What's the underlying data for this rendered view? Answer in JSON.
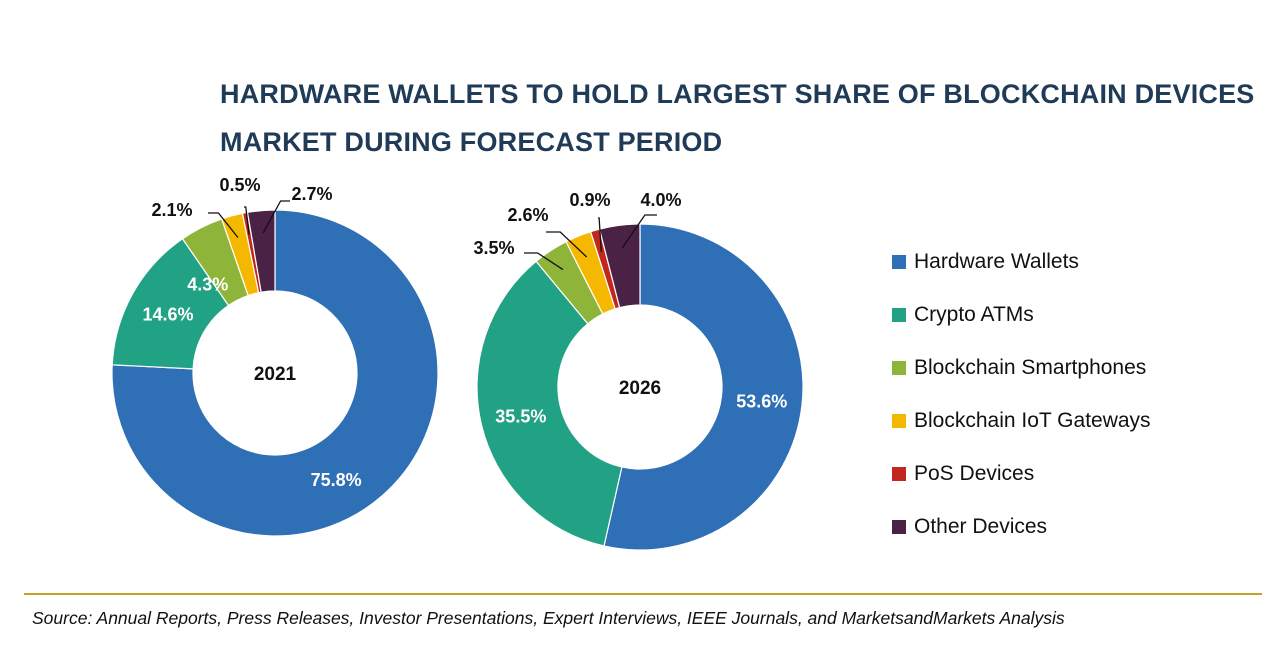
{
  "title_lines": [
    "HARDWARE WALLETS TO HOLD LARGEST SHARE OF BLOCKCHAIN DEVICES",
    "MARKET DURING FORECAST PERIOD"
  ],
  "source": "Source: Annual Reports, Press Releases, Investor Presentations, Expert Interviews, IEEE Journals, and MarketsandMarkets Analysis",
  "colors": {
    "Hardware Wallets": "#2e6fb5",
    "Crypto ATMs": "#22a284",
    "Blockchain Smartphones": "#8fb43a",
    "Blockchain IoT Gateways": "#f5b800",
    "PoS Devices": "#c2271e",
    "Other Devices": "#4a2245",
    "title": "#1f3b57",
    "rule": "#c8a12a"
  },
  "chart_data": [
    {
      "type": "pie",
      "style": "donut",
      "center_label": "2021",
      "categories": [
        "Hardware Wallets",
        "Crypto ATMs",
        "Blockchain Smartphones",
        "Blockchain IoT Gateways",
        "PoS Devices",
        "Other Devices"
      ],
      "values": [
        75.8,
        14.6,
        4.3,
        2.1,
        0.5,
        2.7
      ],
      "labels": [
        "75.8%",
        "14.6%",
        "4.3%",
        "2.1%",
        "0.5%",
        "2.7%"
      ]
    },
    {
      "type": "pie",
      "style": "donut",
      "center_label": "2026",
      "categories": [
        "Hardware Wallets",
        "Crypto ATMs",
        "Blockchain Smartphones",
        "Blockchain IoT Gateways",
        "PoS Devices",
        "Other Devices"
      ],
      "values": [
        53.6,
        35.5,
        3.5,
        2.6,
        0.9,
        4.0
      ],
      "labels": [
        "53.6%",
        "35.5%",
        "3.5%",
        "2.6%",
        "0.9%",
        "4.0%"
      ]
    }
  ],
  "legend": [
    {
      "label": "Hardware Wallets",
      "icon": "square-swatch"
    },
    {
      "label": "Crypto ATMs",
      "icon": "square-swatch"
    },
    {
      "label": "Blockchain Smartphones",
      "icon": "square-swatch"
    },
    {
      "label": "Blockchain IoT Gateways",
      "icon": "square-swatch"
    },
    {
      "label": "PoS Devices",
      "icon": "square-swatch"
    },
    {
      "label": "Other Devices",
      "icon": "square-swatch"
    }
  ]
}
